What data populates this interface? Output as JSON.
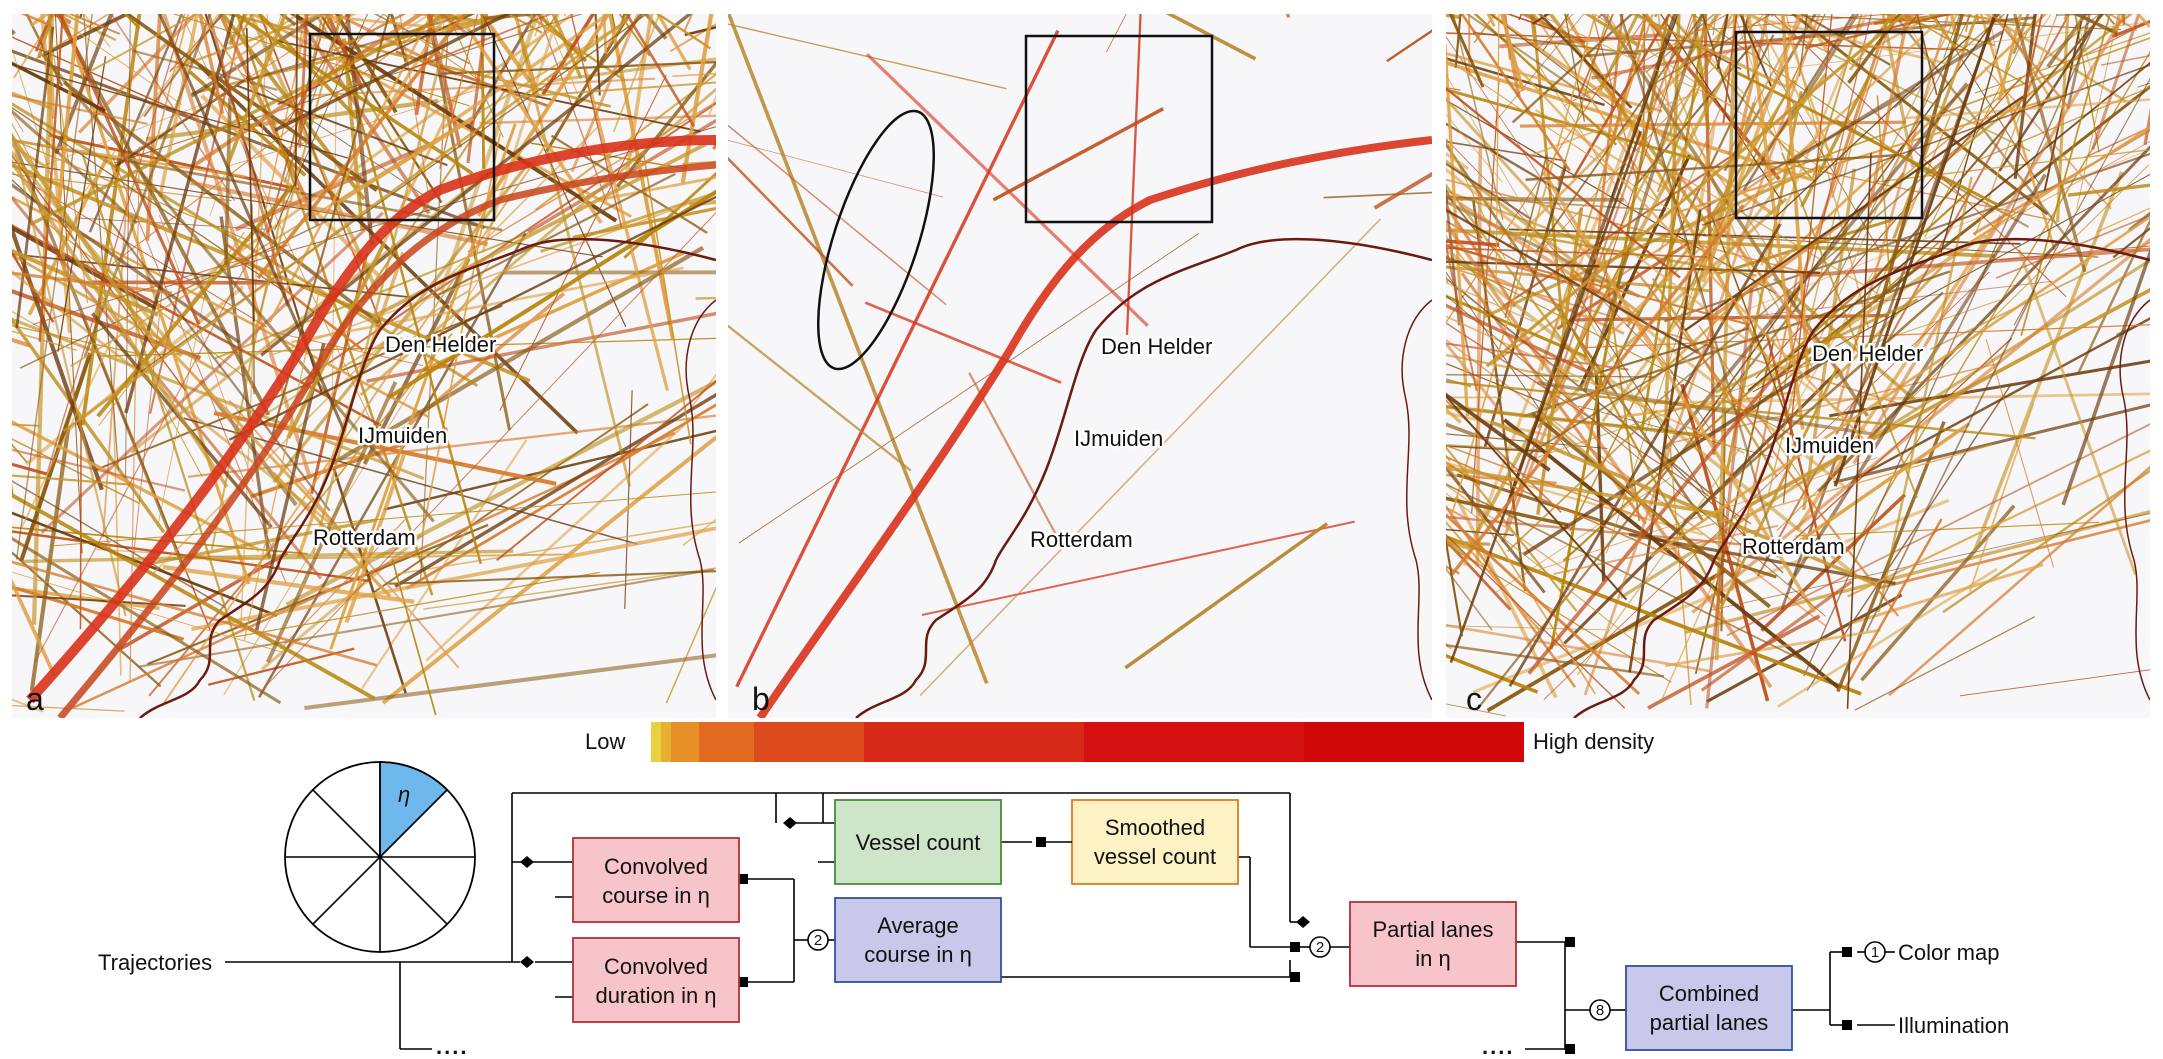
{
  "panels": [
    {
      "letter": "a",
      "cities": [
        "Den Helder",
        "IJmuiden",
        "Rotterdam"
      ]
    },
    {
      "letter": "b",
      "cities": [
        "Den Helder",
        "IJmuiden",
        "Rotterdam"
      ]
    },
    {
      "letter": "c",
      "cities": [
        "Den Helder",
        "IJmuiden",
        "Rotterdam"
      ]
    }
  ],
  "colorbar": {
    "low_label": "Low",
    "high_label": "High density",
    "colors": [
      "#e8d040",
      "#e8b030",
      "#e89028",
      "#e06a20",
      "#dd4a1c",
      "#d82818",
      "#d41010",
      "#d00808"
    ]
  },
  "pipeline": {
    "input": "Trajectories",
    "sector_label": "η",
    "convolved_course": [
      "Convolved",
      "course in η"
    ],
    "convolved_duration": [
      "Convolved",
      "duration in η"
    ],
    "average_course": [
      "Average",
      "course in η"
    ],
    "vessel_count": "Vessel count",
    "smoothed_vessel_count": [
      "Smoothed",
      "vessel count"
    ],
    "partial_lanes": [
      "Partial lanes",
      "in η"
    ],
    "combined_partial_lanes": [
      "Combined",
      "partial lanes"
    ],
    "outputs": [
      "Color map",
      "Illumination"
    ],
    "counts": {
      "average": "2",
      "partial": "2",
      "combined": "8",
      "colormap": "1"
    },
    "ellipsis": "....",
    "box_colors": {
      "red": "#f7c5c9",
      "red_border": "#b0303a",
      "blue": "#c8c8ea",
      "blue_border": "#3050a0",
      "green": "#cfe5c9",
      "green_border": "#4a8a3a",
      "yellow": "#fdf2c4",
      "yellow_border": "#e07a20",
      "sector": "#6fb8ee"
    }
  }
}
